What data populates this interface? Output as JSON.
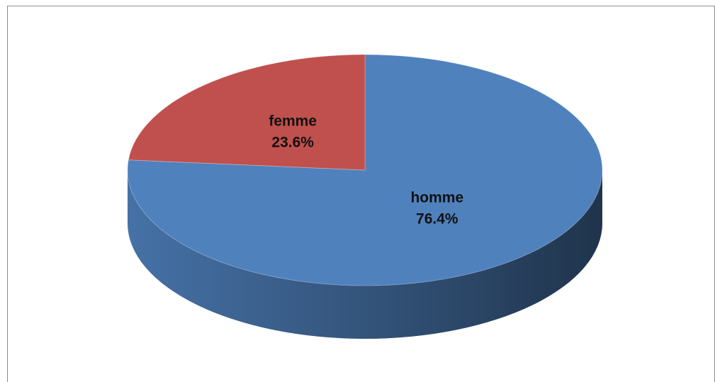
{
  "chart_data": {
    "type": "pie",
    "categories": [
      "homme",
      "femme"
    ],
    "values": [
      76.4,
      23.6
    ],
    "value_labels": [
      "76.4%",
      "23.6%"
    ],
    "colors": [
      "#4f81bd",
      "#c0504d"
    ]
  }
}
